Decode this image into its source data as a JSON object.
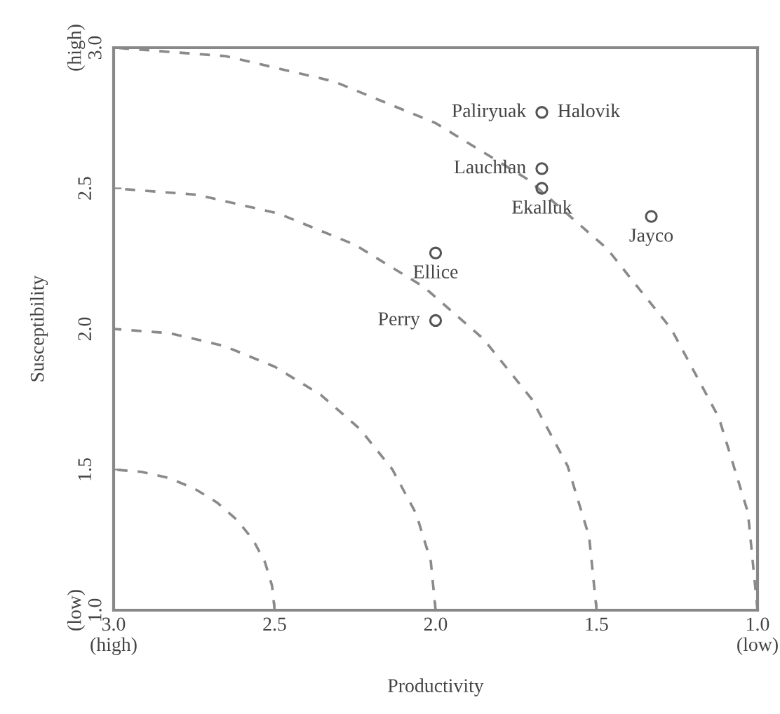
{
  "chart_data": {
    "type": "scatter",
    "xlabel": "Productivity",
    "ylabel": "Susceptibility",
    "xlim": [
      3.0,
      1.0
    ],
    "ylim": [
      1.0,
      3.0
    ],
    "xticks": [
      {
        "value": 3.0,
        "label": "3.0\n(high)"
      },
      2.5,
      {
        "value": 2.0,
        "label": "2.0"
      },
      1.5,
      {
        "value": 1.0,
        "label": "1.0\n(low)"
      }
    ],
    "yticks": [
      {
        "value": 1.0,
        "label": "(low)\n1.0"
      },
      1.5,
      {
        "value": 2.0,
        "label": "2.0"
      },
      2.5,
      {
        "value": 3.0,
        "label": "(high)\n3.0"
      }
    ],
    "grid": false,
    "series": [
      {
        "type": "line",
        "line_style": "dashed",
        "marker": "none",
        "color": "#8a8a8a",
        "x": [
          2.5,
          2.508,
          2.53,
          2.567,
          2.617,
          2.679,
          2.75,
          2.829,
          2.913,
          3.0
        ],
        "values": [
          1.0,
          1.087,
          1.171,
          1.25,
          1.321,
          1.383,
          1.433,
          1.47,
          1.492,
          1.5
        ]
      },
      {
        "type": "line",
        "line_style": "dashed",
        "marker": "none",
        "color": "#8a8a8a",
        "x": [
          2.0,
          2.015,
          2.06,
          2.134,
          2.234,
          2.357,
          2.5,
          2.658,
          2.826,
          3.0
        ],
        "values": [
          1.0,
          1.174,
          1.342,
          1.5,
          1.643,
          1.766,
          1.866,
          1.94,
          1.985,
          2.0
        ]
      },
      {
        "type": "line",
        "line_style": "dashed",
        "marker": "none",
        "color": "#8a8a8a",
        "x": [
          1.5,
          1.523,
          1.59,
          1.701,
          1.851,
          2.036,
          2.25,
          2.487,
          2.739,
          3.0
        ],
        "values": [
          1.0,
          1.261,
          1.513,
          1.75,
          1.964,
          2.149,
          2.299,
          2.41,
          2.477,
          2.5
        ]
      },
      {
        "type": "line",
        "line_style": "dashed",
        "marker": "none",
        "color": "#8a8a8a",
        "x": [
          1.0,
          1.03,
          1.12,
          1.268,
          1.468,
          1.714,
          2.0,
          2.316,
          2.652,
          3.0
        ],
        "values": [
          1.0,
          1.348,
          1.684,
          2.0,
          2.286,
          2.532,
          2.732,
          2.88,
          2.97,
          3.0
        ]
      },
      {
        "type": "scatter",
        "marker": "circle",
        "color": "#555555",
        "x": [
          1.67,
          1.67,
          1.67,
          1.33,
          2.0,
          2.0
        ],
        "values": [
          2.77,
          2.57,
          2.5,
          2.4,
          2.27,
          2.03
        ]
      }
    ],
    "annotations": [
      {
        "text": "Paliryuak",
        "x": 1.67,
        "y": 2.77
      },
      {
        "text": "Halovik",
        "x": 1.67,
        "y": 2.77
      },
      {
        "text": "Lauchlan",
        "x": 1.67,
        "y": 2.57
      },
      {
        "text": "Ekalluk",
        "x": 1.67,
        "y": 2.5
      },
      {
        "text": "Jayco",
        "x": 1.33,
        "y": 2.4
      },
      {
        "text": "Ellice",
        "x": 2.0,
        "y": 2.27
      },
      {
        "text": "Perry",
        "x": 2.0,
        "y": 2.03
      }
    ]
  }
}
